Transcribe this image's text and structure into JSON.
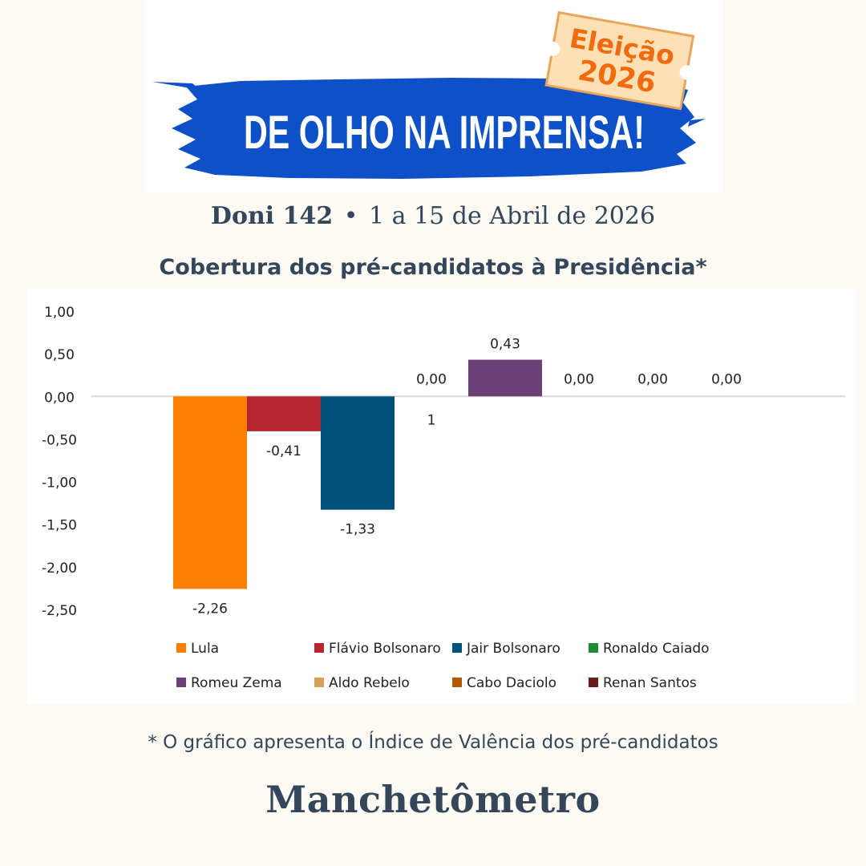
{
  "banner": {
    "headline": "DE OLHO NA IMPRENSA!",
    "ticket_line1": "Eleição",
    "ticket_line2": "2026"
  },
  "edition": {
    "issue": "Doni 142",
    "separator": "•",
    "period": "1 a 15 de Abril de 2026"
  },
  "chart_data": {
    "type": "bar",
    "title": "Cobertura dos pré-candidatos à Presidência*",
    "xlabel": "",
    "ylabel": "",
    "ylim": [
      -2.5,
      1.0
    ],
    "y_ticks": [
      "1,00",
      "0,50",
      "0,00",
      "-0,50",
      "-1,00",
      "-1,50",
      "-2,00",
      "-2,50"
    ],
    "y_tick_values": [
      1.0,
      0.5,
      0.0,
      -0.5,
      -1.0,
      -1.5,
      -2.0,
      -2.5
    ],
    "grid": false,
    "x_tick_label": "1",
    "legend_position": "bottom",
    "series": [
      {
        "name": "Lula",
        "value": -2.26,
        "label": "-2,26",
        "color": "#ff8000"
      },
      {
        "name": "Flávio Bolsonaro",
        "value": -0.41,
        "label": "-0,41",
        "color": "#b82532"
      },
      {
        "name": "Jair Bolsonaro",
        "value": -1.33,
        "label": "-1,33",
        "color": "#005278"
      },
      {
        "name": "Ronaldo Caiado",
        "value": 0.0,
        "label": "0,00",
        "color": "#1d8b3a"
      },
      {
        "name": "Romeu Zema",
        "value": 0.43,
        "label": "0,43",
        "color": "#6a4277"
      },
      {
        "name": "Aldo Rebelo",
        "value": 0.0,
        "label": "0,00",
        "color": "#d9a05b"
      },
      {
        "name": "Cabo Daciolo",
        "value": 0.0,
        "label": "0,00",
        "color": "#b35900"
      },
      {
        "name": "Renan Santos",
        "value": 0.0,
        "label": "0,00",
        "color": "#6b1a1a"
      }
    ]
  },
  "footnote": "* O gráfico apresenta o Índice de Valência dos pré-candidatos",
  "brand": "Manchetômetro"
}
